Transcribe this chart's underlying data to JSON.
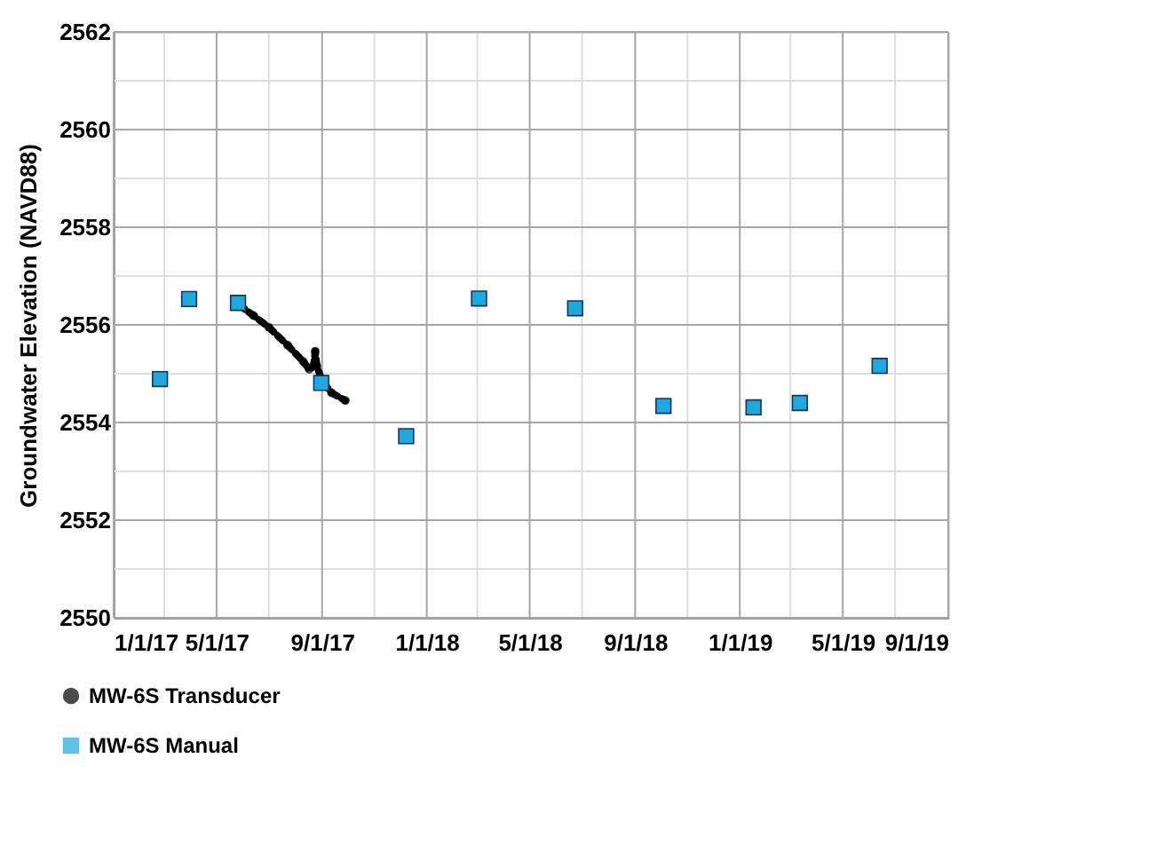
{
  "chart_data": {
    "type": "scatter",
    "ylabel": "Groundwater Elevation (NAVD88)",
    "x": [
      "2017-02-24",
      "2017-03-30",
      "2017-05-26",
      "2017-08-31",
      "2017-12-08",
      "2018-03-03",
      "2018-06-23",
      "2018-10-04",
      "2019-01-17",
      "2019-03-12",
      "2019-06-13"
    ],
    "series": [
      {
        "name": "MW-6S Transducer",
        "type": "line",
        "marker": "circle",
        "line_style": "dashed",
        "color": "#000000",
        "x": [
          "2017-05-27",
          "2017-06-13",
          "2017-07-01",
          "2017-07-23",
          "2017-08-10",
          "2017-08-17",
          "2017-08-22",
          "2017-08-24",
          "2017-08-26",
          "2017-09-01",
          "2017-09-12",
          "2017-09-28"
        ],
        "values": [
          2556.41,
          2556.19,
          2555.95,
          2555.58,
          2555.25,
          2555.09,
          2555.15,
          2555.46,
          2555.15,
          2554.85,
          2554.61,
          2554.45
        ]
      },
      {
        "name": "MW-6S Manual",
        "marker": "square",
        "color": "#1ea8e0",
        "values": [
          2554.89,
          2556.53,
          2556.45,
          2554.81,
          2553.72,
          2556.54,
          2556.34,
          2554.34,
          2554.31,
          2554.4,
          2555.16
        ]
      }
    ],
    "xlim": [
      "2017-01-01",
      "2019-09-01"
    ],
    "xticks": [
      {
        "value": "2017-01-01",
        "label": "1/1/17"
      },
      {
        "value": "2017-03-01",
        "label": null
      },
      {
        "value": "2017-05-01",
        "label": "5/1/17"
      },
      {
        "value": "2017-07-01",
        "label": null
      },
      {
        "value": "2017-09-01",
        "label": "9/1/17"
      },
      {
        "value": "2017-11-01",
        "label": null
      },
      {
        "value": "2018-01-01",
        "label": "1/1/18"
      },
      {
        "value": "2018-03-01",
        "label": null
      },
      {
        "value": "2018-05-01",
        "label": "5/1/18"
      },
      {
        "value": "2018-07-01",
        "label": null
      },
      {
        "value": "2018-09-01",
        "label": "9/1/18"
      },
      {
        "value": "2018-11-01",
        "label": null
      },
      {
        "value": "2019-01-01",
        "label": "1/1/19"
      },
      {
        "value": "2019-03-01",
        "label": null
      },
      {
        "value": "2019-05-01",
        "label": "5/1/19"
      },
      {
        "value": "2019-07-01",
        "label": null
      },
      {
        "value": "2019-09-01",
        "label": "9/1/19"
      }
    ],
    "ylim": [
      2550,
      2562
    ],
    "yticks": [
      2550,
      {
        "value": 2551,
        "label": null
      },
      2552,
      {
        "value": 2553,
        "label": null
      },
      2554,
      {
        "value": 2555,
        "label": null
      },
      2556,
      {
        "value": 2557,
        "label": null
      },
      2558,
      {
        "value": 2559,
        "label": null
      },
      2560,
      {
        "value": 2561,
        "label": null
      },
      2562
    ],
    "grid": true,
    "legend": "bottom left"
  }
}
